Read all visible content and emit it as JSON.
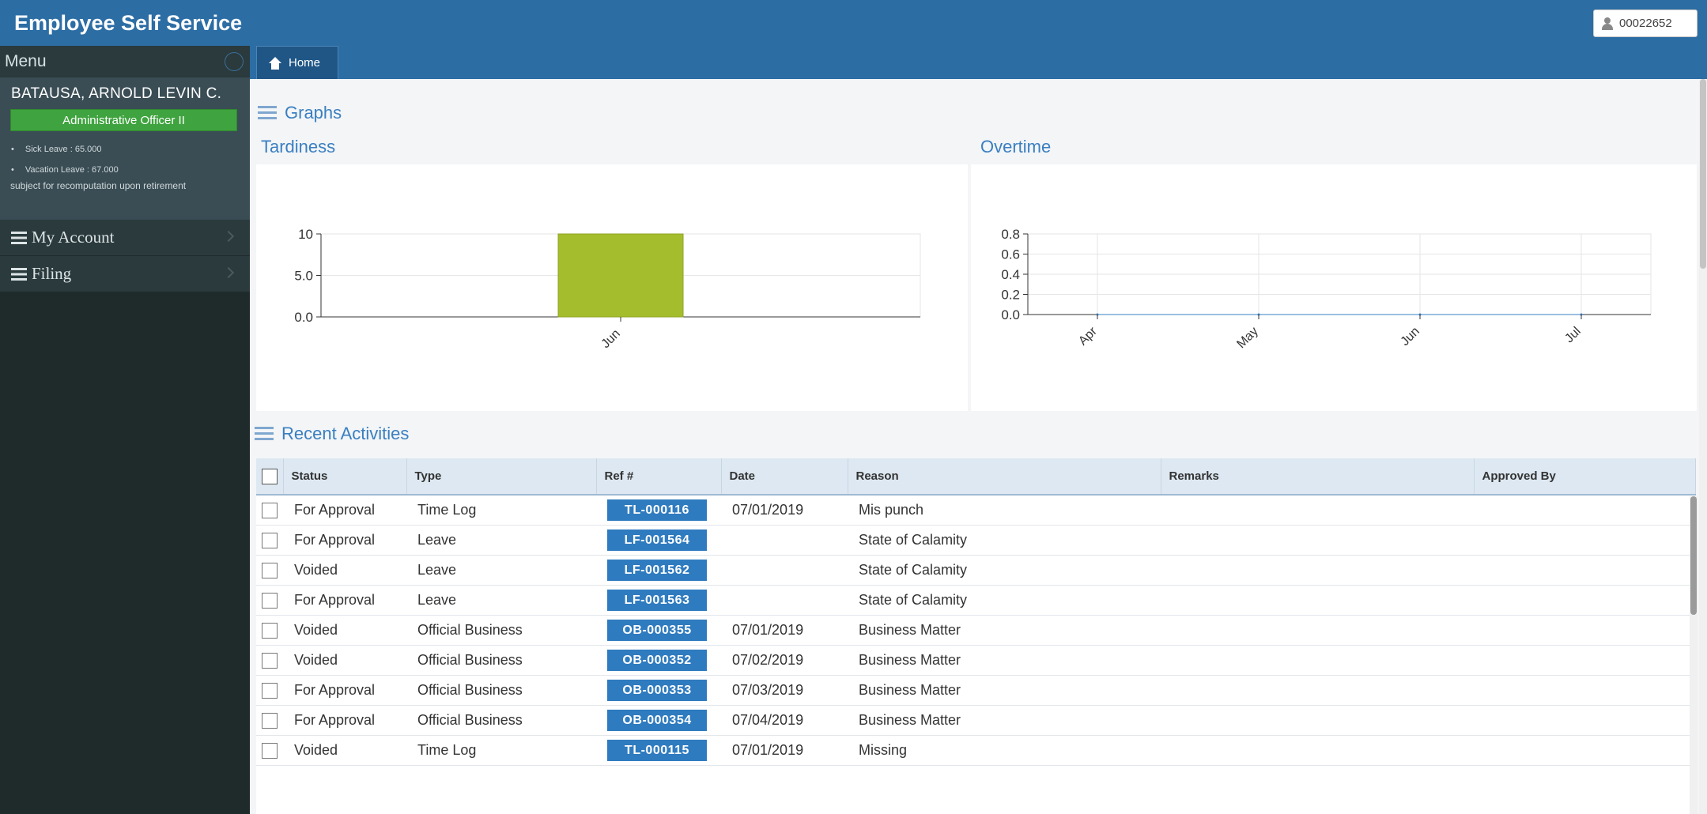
{
  "header": {
    "app_title": "Employee Self Service",
    "user_id": "00022652"
  },
  "sidebar": {
    "menu_label": "Menu",
    "profile": {
      "name": "BATAUSA, ARNOLD LEVIN C.",
      "position": "Administrative Officer II",
      "leaves": [
        "Sick Leave : 65.000",
        "Vacation Leave : 67.000"
      ],
      "note": "subject for recomputation upon retirement"
    },
    "items": [
      {
        "label": "My Account",
        "icon": "list-icon"
      },
      {
        "label": "Filing",
        "icon": "list-icon"
      }
    ]
  },
  "tabs": [
    {
      "label": "Home",
      "icon": "home-icon",
      "active": true
    }
  ],
  "graphs": {
    "section_title": "Graphs",
    "tardiness_title": "Tardiness",
    "overtime_title": "Overtime"
  },
  "chart_data": [
    {
      "type": "bar",
      "title": "Tardiness",
      "categories": [
        "Jun"
      ],
      "values": [
        10
      ],
      "ylim": [
        0,
        10
      ],
      "yticks": [
        "0.0",
        "5.0",
        "10"
      ],
      "color": "#a4bd2c",
      "grid": true
    },
    {
      "type": "line",
      "title": "Overtime",
      "categories": [
        "Apr",
        "May",
        "Jun",
        "Jul"
      ],
      "values": [
        0,
        0,
        0,
        0
      ],
      "ylim": [
        0,
        0.8
      ],
      "yticks": [
        "0.0",
        "0.2",
        "0.4",
        "0.6",
        "0.8"
      ],
      "grid": true
    }
  ],
  "activities": {
    "section_title": "Recent Activities",
    "columns": [
      "Status",
      "Type",
      "Ref #",
      "Date",
      "Reason",
      "Remarks",
      "Approved By"
    ],
    "rows": [
      {
        "status": "For Approval",
        "type": "Time Log",
        "ref": "TL-000116",
        "date": "07/01/2019",
        "reason": "Mis punch",
        "remarks": "",
        "approved_by": ""
      },
      {
        "status": "For Approval",
        "type": "Leave",
        "ref": "LF-001564",
        "date": "",
        "reason": "State of Calamity",
        "remarks": "",
        "approved_by": ""
      },
      {
        "status": "Voided",
        "type": "Leave",
        "ref": "LF-001562",
        "date": "",
        "reason": "State of Calamity",
        "remarks": "",
        "approved_by": ""
      },
      {
        "status": "For Approval",
        "type": "Leave",
        "ref": "LF-001563",
        "date": "",
        "reason": "State of Calamity",
        "remarks": "",
        "approved_by": ""
      },
      {
        "status": "Voided",
        "type": "Official Business",
        "ref": "OB-000355",
        "date": "07/01/2019",
        "reason": "Business Matter",
        "remarks": "",
        "approved_by": ""
      },
      {
        "status": "Voided",
        "type": "Official Business",
        "ref": "OB-000352",
        "date": "07/02/2019",
        "reason": "Business Matter",
        "remarks": "",
        "approved_by": ""
      },
      {
        "status": "For Approval",
        "type": "Official Business",
        "ref": "OB-000353",
        "date": "07/03/2019",
        "reason": "Business Matter",
        "remarks": "",
        "approved_by": ""
      },
      {
        "status": "For Approval",
        "type": "Official Business",
        "ref": "OB-000354",
        "date": "07/04/2019",
        "reason": "Business Matter",
        "remarks": "",
        "approved_by": ""
      },
      {
        "status": "Voided",
        "type": "Time Log",
        "ref": "TL-000115",
        "date": "07/01/2019",
        "reason": "Missing",
        "remarks": "",
        "approved_by": ""
      }
    ]
  },
  "colors": {
    "header_bg": "#2c6da4",
    "sidebar_bg": "#1f2b2b",
    "badge_green": "#3fa33f",
    "ref_badge": "#2f7bbf",
    "bar_green": "#a4bd2c",
    "section_blue": "#3a7fc1"
  }
}
